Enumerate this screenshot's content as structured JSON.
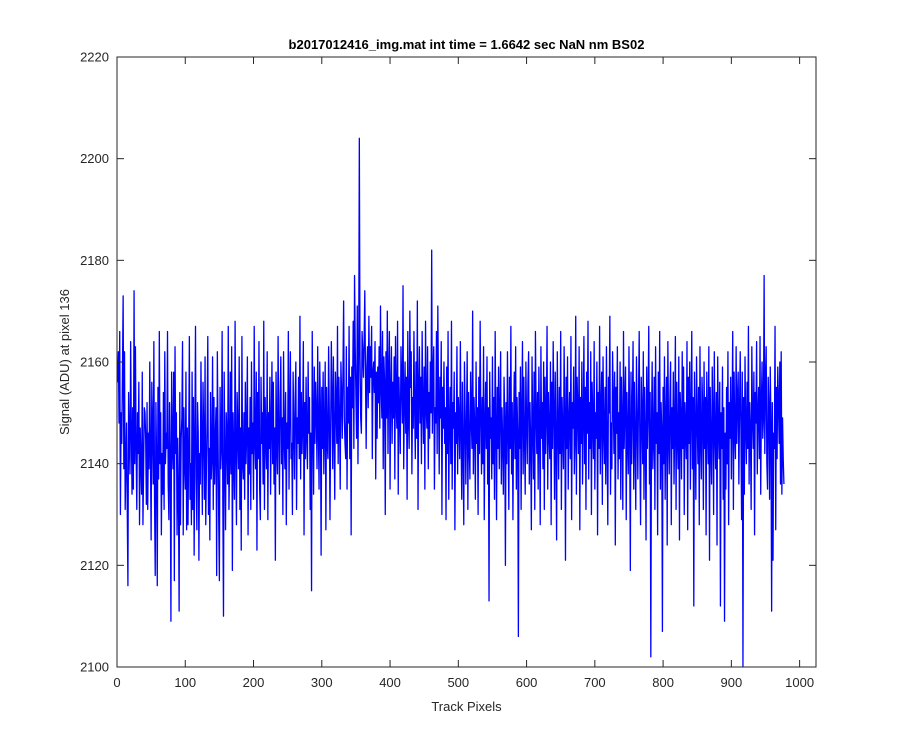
{
  "chart_data": {
    "type": "line",
    "title": "b2017012416_img.mat int time = 1.6642 sec  NaN nm BS02",
    "xlabel": "Track Pixels",
    "ylabel": "Signal (ADU) at pixel 136",
    "xlim": [
      0,
      1024
    ],
    "ylim": [
      2100,
      2220
    ],
    "xticks": [
      0,
      100,
      200,
      300,
      400,
      500,
      600,
      700,
      800,
      900,
      1000
    ],
    "yticks": [
      2100,
      2120,
      2140,
      2160,
      2180,
      2200,
      2220
    ],
    "grid": false,
    "line_color": "#0000ff",
    "series": [
      {
        "x_start": 1,
        "x_step": 1,
        "values": [
          2156,
          2162,
          2148,
          2166,
          2130,
          2150,
          2144,
          2158,
          2173,
          2139,
          2162,
          2131,
          2140,
          2148,
          2131,
          2116,
          2154,
          2145,
          2138,
          2164,
          2147,
          2134,
          2151,
          2135,
          2174,
          2140,
          2163,
          2143,
          2131,
          2150,
          2142,
          2156,
          2128,
          2147,
          2140,
          2134,
          2158,
          2128,
          2139,
          2151,
          2150,
          2145,
          2132,
          2152,
          2131,
          2146,
          2139,
          2160,
          2142,
          2125,
          2156,
          2147,
          2136,
          2164,
          2133,
          2118,
          2152,
          2141,
          2116,
          2155,
          2137,
          2166,
          2140,
          2150,
          2126,
          2142,
          2134,
          2154,
          2131,
          2162,
          2140,
          2146,
          2143,
          2166,
          2136,
          2129,
          2152,
          2141,
          2109,
          2158,
          2144,
          2139,
          2158,
          2117,
          2163,
          2142,
          2150,
          2126,
          2145,
          2134,
          2111,
          2154,
          2128,
          2145,
          2149,
          2164,
          2126,
          2151,
          2140,
          2135,
          2158,
          2127,
          2147,
          2128,
          2143,
          2165,
          2133,
          2140,
          2128,
          2158,
          2131,
          2153,
          2122,
          2144,
          2167,
          2137,
          2127,
          2152,
          2146,
          2121,
          2142,
          2136,
          2160,
          2145,
          2130,
          2156,
          2146,
          2133,
          2161,
          2128,
          2139,
          2149,
          2165,
          2130,
          2143,
          2125,
          2154,
          2137,
          2141,
          2161,
          2131,
          2153,
          2136,
          2145,
          2151,
          2118,
          2162,
          2146,
          2129,
          2117,
          2155,
          2139,
          2143,
          2166,
          2133,
          2110,
          2158,
          2142,
          2127,
          2150,
          2145,
          2136,
          2167,
          2131,
          2140,
          2158,
          2138,
          2163,
          2119,
          2150,
          2141,
          2133,
          2168,
          2142,
          2128,
          2154,
          2146,
          2139,
          2161,
          2131,
          2147,
          2123,
          2165,
          2140,
          2137,
          2150,
          2133,
          2156,
          2140,
          2146,
          2161,
          2126,
          2147,
          2138,
          2153,
          2131,
          2160,
          2142,
          2148,
          2133,
          2167,
          2144,
          2139,
          2158,
          2123,
          2154,
          2141,
          2164,
          2135,
          2129,
          2157,
          2144,
          2150,
          2136,
          2168,
          2131,
          2153,
          2145,
          2139,
          2162,
          2129,
          2150,
          2143,
          2157,
          2134,
          2147,
          2160,
          2140,
          2156,
          2136,
          2147,
          2121,
          2158,
          2144,
          2138,
          2165,
          2146,
          2134,
          2153,
          2161,
          2140,
          2149,
          2130,
          2162,
          2145,
          2139,
          2154,
          2128,
          2148,
          2143,
          2166,
          2135,
          2151,
          2162,
          2141,
          2144,
          2130,
          2158,
          2147,
          2137,
          2153,
          2160,
          2131,
          2149,
          2144,
          2157,
          2141,
          2169,
          2137,
          2154,
          2142,
          2148,
          2164,
          2126,
          2152,
          2141,
          2157,
          2145,
          2139,
          2160,
          2146,
          2153,
          2131,
          2146,
          2115,
          2166,
          2149,
          2134,
          2159,
          2144,
          2156,
          2150,
          2139,
          2163,
          2147,
          2135,
          2160,
          2151,
          2122,
          2155,
          2143,
          2158,
          2138,
          2147,
          2160,
          2127,
          2155,
          2144,
          2141,
          2163,
          2150,
          2129,
          2147,
          2164,
          2153,
          2139,
          2161,
          2146,
          2133,
          2158,
          2152,
          2144,
          2167,
          2140,
          2157,
          2149,
          2135,
          2160,
          2154,
          2145,
          2158,
          2172,
          2149,
          2144,
          2141,
          2163,
          2135,
          2155,
          2148,
          2167,
          2141,
          2157,
          2126,
          2159,
          2151,
          2168,
          2143,
          2177,
          2163,
          2153,
          2145,
          2171,
          2140,
          2158,
          2204,
          2161,
          2149,
          2146,
          2166,
          2162,
          2157,
          2164,
          2174,
          2158,
          2143,
          2159,
          2163,
          2151,
          2169,
          2154,
          2163,
          2157,
          2167,
          2141,
          2158,
          2160,
          2154,
          2164,
          2137,
          2158,
          2145,
          2159,
          2152,
          2163,
          2147,
          2171,
          2155,
          2149,
          2166,
          2139,
          2161,
          2156,
          2130,
          2162,
          2149,
          2170,
          2142,
          2158,
          2166,
          2135,
          2155,
          2163,
          2144,
          2156,
          2149,
          2161,
          2137,
          2165,
          2152,
          2147,
          2168,
          2134,
          2157,
          2150,
          2142,
          2163,
          2156,
          2148,
          2175,
          2139,
          2152,
          2160,
          2146,
          2157,
          2133,
          2166,
          2149,
          2143,
          2170,
          2155,
          2162,
          2138,
          2153,
          2147,
          2166,
          2151,
          2141,
          2160,
          2145,
          2172,
          2131,
          2155,
          2163,
          2148,
          2157,
          2140,
          2166,
          2152,
          2144,
          2159,
          2135,
          2168,
          2151,
          2147,
          2163,
          2139,
          2154,
          2145,
          2160,
          2150,
          2182,
          2146,
          2157,
          2163,
          2135,
          2151,
          2148,
          2166,
          2142,
          2171,
          2153,
          2138,
          2157,
          2149,
          2164,
          2130,
          2155,
          2147,
          2160,
          2144,
          2151,
          2129,
          2159,
          2142,
          2166,
          2133,
          2148,
          2155,
          2140,
          2168,
          2135,
          2152,
          2147,
          2158,
          2127,
          2150,
          2144,
          2163,
          2138,
          2153,
          2149,
          2141,
          2164,
          2146,
          2133,
          2156,
          2142,
          2128,
          2160,
          2150,
          2136,
          2148,
          2162,
          2131,
          2154,
          2144,
          2137,
          2158,
          2149,
          2143,
          2170,
          2138,
          2153,
          2147,
          2133,
          2160,
          2144,
          2151,
          2130,
          2157,
          2142,
          2168,
          2149,
          2138,
          2153,
          2140,
          2163,
          2129,
          2147,
          2156,
          2143,
          2161,
          2136,
          2151,
          2113,
          2158,
          2145,
          2149,
          2137,
          2161,
          2140,
          2153,
          2133,
          2166,
          2147,
          2129,
          2155,
          2143,
          2159,
          2139,
          2150,
          2162,
          2136,
          2151,
          2144,
          2134,
          2157,
          2149,
          2120,
          2152,
          2140,
          2162,
          2146,
          2131,
          2157,
          2143,
          2167,
          2138,
          2152,
          2129,
          2148,
          2158,
          2141,
          2163,
          2135,
          2153,
          2146,
          2106,
          2154,
          2143,
          2159,
          2131,
          2150,
          2164,
          2138,
          2157,
          2145,
          2134,
          2160,
          2148,
          2140,
          2156,
          2162,
          2136,
          2152,
          2144,
          2127,
          2161,
          2148,
          2137,
          2158,
          2131,
          2166,
          2150,
          2142,
          2154,
          2135,
          2159,
          2147,
          2128,
          2163,
          2145,
          2152,
          2139,
          2160,
          2131,
          2157,
          2142,
          2150,
          2167,
          2135,
          2154,
          2146,
          2141,
          2160,
          2128,
          2156,
          2143,
          2164,
          2150,
          2133,
          2158,
          2144,
          2125,
          2162,
          2148,
          2137,
          2155,
          2142,
          2166,
          2131,
          2153,
          2146,
          2139,
          2163,
          2150,
          2121,
          2157,
          2143,
          2161,
          2135,
          2148,
          2154,
          2141,
          2165,
          2129,
          2152,
          2147,
          2159,
          2138,
          2145,
          2169,
          2134,
          2157,
          2151,
          2142,
          2163,
          2127,
          2153,
          2144,
          2160,
          2136,
          2149,
          2165,
          2140,
          2155,
          2131,
          2158,
          2146,
          2168,
          2137,
          2152,
          2143,
          2162,
          2130,
          2156,
          2149,
          2141,
          2164,
          2135,
          2150,
          2145,
          2160,
          2126,
          2154,
          2143,
          2167,
          2138,
          2151,
          2158,
          2132,
          2161,
          2147,
          2140,
          2155,
          2136,
          2163,
          2144,
          2128,
          2157,
          2150,
          2169,
          2134,
          2148,
          2139,
          2162,
          2153,
          2142,
          2158,
          2124,
          2155,
          2146,
          2163,
          2137,
          2150,
          2141,
          2160,
          2133,
          2157,
          2148,
          2131,
          2166,
          2143,
          2152,
          2159,
          2129,
          2154,
          2145,
          2138,
          2163,
          2147,
          2119,
          2158,
          2140,
          2151,
          2164,
          2135,
          2156,
          2144,
          2131,
          2161,
          2149,
          2137,
          2153,
          2166,
          2142,
          2128,
          2157,
          2150,
          2140,
          2162,
          2133,
          2155,
          2146,
          2125,
          2159,
          2143,
          2151,
          2167,
          2136,
          2154,
          2102,
          2148,
          2160,
          2139,
          2145,
          2157,
          2131,
          2163,
          2144,
          2150,
          2126,
          2158,
          2142,
          2166,
          2135,
          2152,
          2147,
          2107,
          2155,
          2140,
          2161,
          2133,
          2149,
          2157,
          2124,
          2164,
          2146,
          2138,
          2153,
          2160,
          2128,
          2151,
          2143,
          2158,
          2136,
          2147,
          2165,
          2131,
          2156,
          2145,
          2139,
          2161,
          2125,
          2154,
          2149,
          2137,
          2162,
          2143,
          2159,
          2130,
          2152,
          2147,
          2141,
          2164,
          2127,
          2157,
          2144,
          2160,
          2135,
          2150,
          2166,
          2139,
          2153,
          2112,
          2158,
          2146,
          2133,
          2161,
          2149,
          2140,
          2155,
          2128,
          2163,
          2145,
          2137,
          2157,
          2151,
          2131,
          2160,
          2143,
          2153,
          2126,
          2158,
          2148,
          2140,
          2163,
          2121,
          2155,
          2144,
          2136,
          2159,
          2150,
          2130,
          2162,
          2146,
          2139,
          2154,
          2124,
          2161,
          2147,
          2141,
          2156,
          2112,
          2150,
          2143,
          2159,
          2133,
          2151,
          2109,
          2146,
          2135,
          2155,
          2140,
          2162,
          2128,
          2152,
          2145,
          2157,
          2137,
          2149,
          2166,
          2131,
          2158,
          2146,
          2141,
          2163,
          2144,
          2153,
          2158,
          2136,
          2151,
          2162,
          2147,
          2129,
          2158,
          2100,
          2153,
          2134,
          2161,
          2147,
          2140,
          2156,
          2143,
          2167,
          2136,
          2152,
          2146,
          2131,
          2163,
          2149,
          2143,
          2158,
          2126,
          2154,
          2148,
          2164,
          2138,
          2150,
          2155,
          2141,
          2165,
          2134,
          2152,
          2160,
          2145,
          2149,
          2177,
          2142,
          2156,
          2163,
          2140,
          2135,
          2157,
          2151,
          2133,
          2159,
          2148,
          2111,
          2152,
          2121,
          2146,
          2143,
          2167,
          2127,
          2155,
          2141,
          2159,
          2152,
          2144,
          2160,
          2136,
          2162,
          2134,
          2149,
          2141,
          2136
        ]
      }
    ]
  }
}
